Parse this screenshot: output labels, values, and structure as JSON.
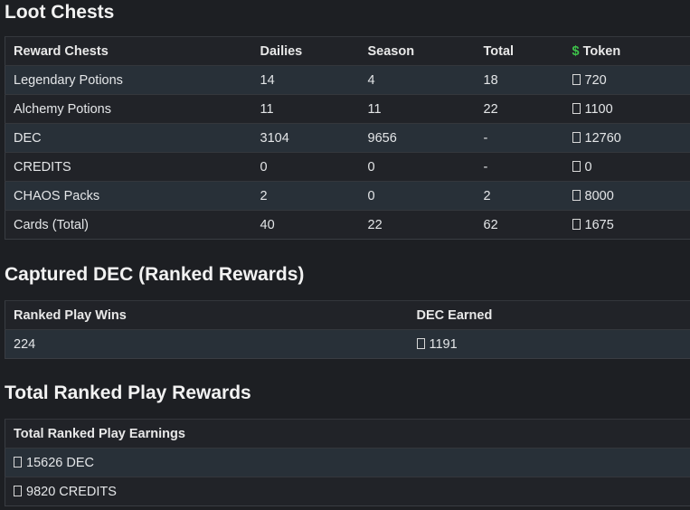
{
  "sections": [
    {
      "title": "Loot Chests",
      "table": {
        "header": [
          "Reward Chests",
          "Dailies",
          "Season",
          "Total",
          "Token"
        ],
        "token_symbol": "$",
        "rows": [
          [
            "Legendary Potions",
            "14",
            "4",
            "18",
            "720"
          ],
          [
            "Alchemy Potions",
            "11",
            "11",
            "22",
            "1100"
          ],
          [
            "DEC",
            "3104",
            "9656",
            "-",
            "12760"
          ],
          [
            "CREDITS",
            "0",
            "0",
            "-",
            "0"
          ],
          [
            "CHAOS Packs",
            "2",
            "0",
            "2",
            "8000"
          ],
          [
            "Cards (Total)",
            "40",
            "22",
            "62",
            "1675"
          ]
        ]
      }
    },
    {
      "title": "Captured DEC (Ranked Rewards)",
      "table": {
        "header": [
          "Ranked Play Wins",
          "DEC Earned"
        ],
        "rows": [
          [
            "224",
            "1191"
          ]
        ]
      }
    },
    {
      "title": "Total Ranked Play Rewards",
      "table": {
        "header": [
          "Total Ranked Play Earnings"
        ],
        "rows": [
          [
            "15626 DEC"
          ],
          [
            "9820 CREDITS"
          ]
        ]
      }
    }
  ]
}
